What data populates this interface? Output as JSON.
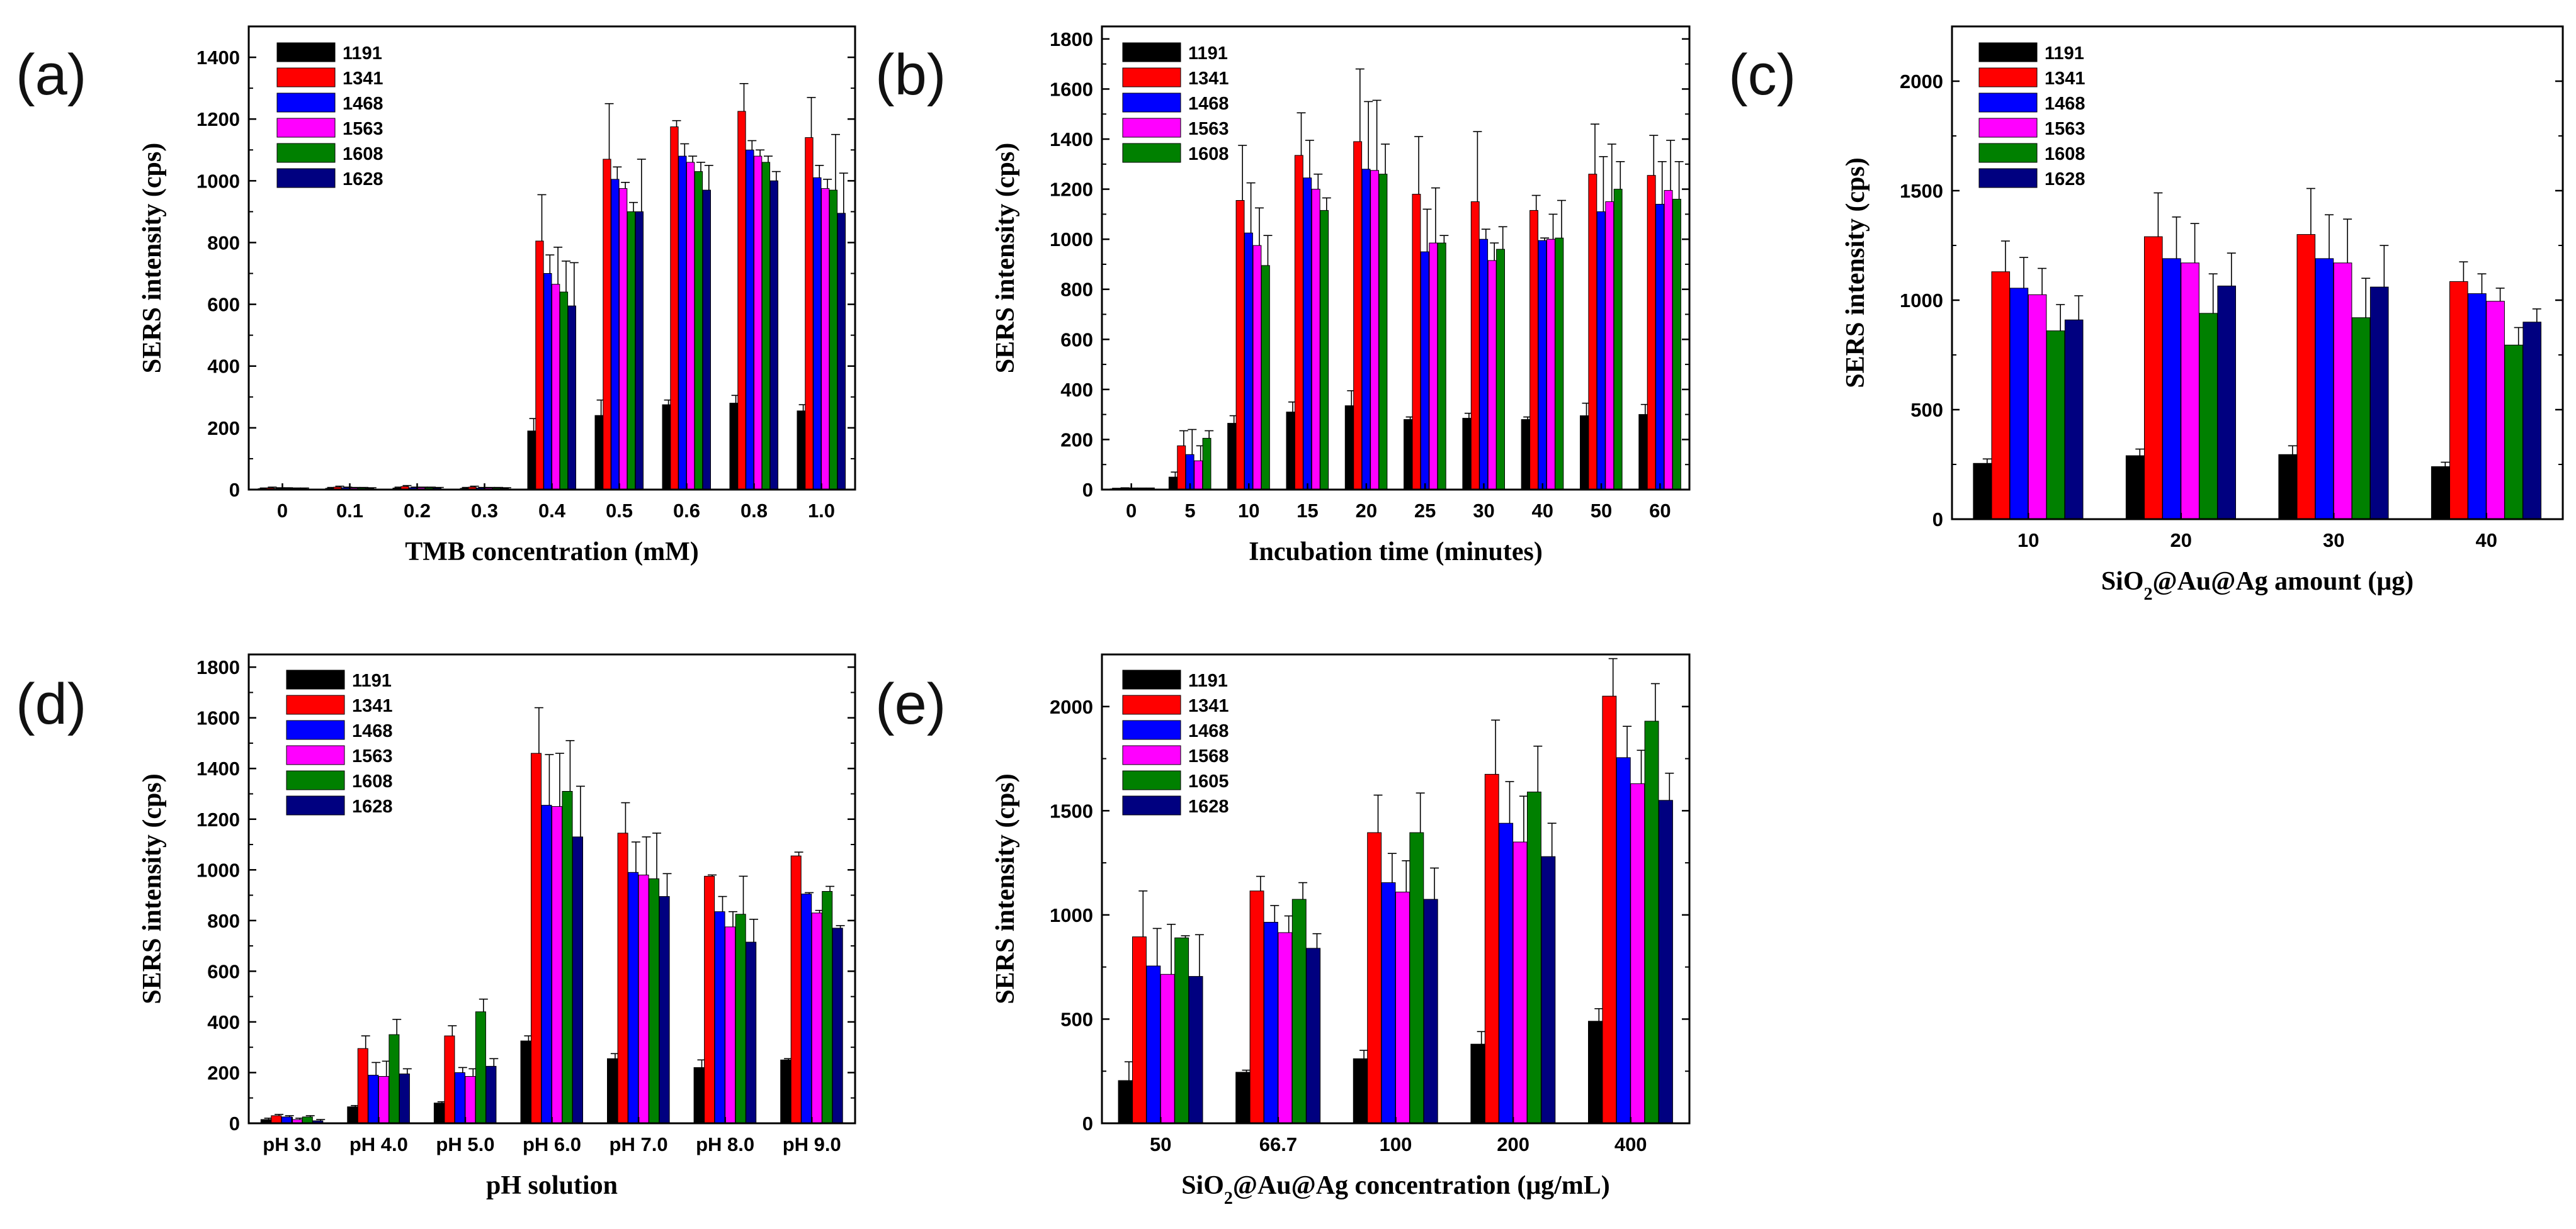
{
  "colors": {
    "1191": "#000000",
    "1341": "#ff0000",
    "1468": "#0000ff",
    "1563": "#ff00ff",
    "1568": "#ff00ff",
    "1605": "#008000",
    "1608": "#008000",
    "1628": "#000080"
  },
  "chart_data": [
    {
      "id": "a",
      "type": "bar",
      "panel_label": "(a)",
      "xlabel": "TMB concentration (mM)",
      "ylabel": "SERS intensity (cps)",
      "ylim": [
        0,
        1500
      ],
      "yticks": [
        0,
        200,
        400,
        600,
        800,
        1000,
        1200,
        1400
      ],
      "legend": "top-left",
      "categories": [
        "0",
        "0.1",
        "0.2",
        "0.3",
        "0.4",
        "0.5",
        "0.6",
        "0.8",
        "1.0"
      ],
      "series": [
        {
          "name": "1191",
          "values": [
            3,
            4,
            5,
            4,
            190,
            240,
            275,
            280,
            255
          ],
          "errors": [
            2,
            3,
            3,
            3,
            40,
            50,
            15,
            25,
            20
          ]
        },
        {
          "name": "1341",
          "values": [
            5,
            8,
            10,
            8,
            805,
            1070,
            1175,
            1225,
            1140
          ],
          "errors": [
            3,
            3,
            3,
            3,
            150,
            180,
            20,
            90,
            130
          ]
        },
        {
          "name": "1468",
          "values": [
            4,
            6,
            6,
            5,
            700,
            1005,
            1080,
            1100,
            1010
          ],
          "errors": [
            2,
            2,
            2,
            2,
            60,
            40,
            40,
            30,
            40
          ]
        },
        {
          "name": "1563",
          "values": [
            4,
            5,
            6,
            5,
            665,
            975,
            1060,
            1080,
            975
          ],
          "errors": [
            2,
            2,
            2,
            2,
            120,
            20,
            20,
            20,
            30
          ]
        },
        {
          "name": "1608",
          "values": [
            3,
            5,
            6,
            5,
            640,
            900,
            1030,
            1060,
            970
          ],
          "errors": [
            2,
            2,
            2,
            2,
            100,
            30,
            30,
            20,
            180
          ]
        },
        {
          "name": "1628",
          "values": [
            3,
            4,
            5,
            4,
            595,
            900,
            970,
            1000,
            895
          ],
          "errors": [
            2,
            2,
            2,
            2,
            140,
            170,
            80,
            30,
            130
          ]
        }
      ]
    },
    {
      "id": "b",
      "type": "bar",
      "panel_label": "(b)",
      "xlabel": "Incubation time (minutes)",
      "ylabel": "SERS intensity (cps)",
      "ylim": [
        0,
        1850
      ],
      "yticks": [
        0,
        200,
        400,
        600,
        800,
        1000,
        1200,
        1400,
        1600,
        1800
      ],
      "legend": "top-left",
      "categories": [
        "0",
        "5",
        "10",
        "15",
        "20",
        "25",
        "30",
        "40",
        "50",
        "60"
      ],
      "series": [
        {
          "name": "1191",
          "values": [
            3,
            50,
            265,
            310,
            335,
            280,
            285,
            280,
            295,
            300
          ],
          "errors": [
            2,
            20,
            30,
            40,
            60,
            10,
            20,
            10,
            50,
            40
          ]
        },
        {
          "name": "1341",
          "values": [
            5,
            175,
            1155,
            1335,
            1390,
            1180,
            1150,
            1115,
            1260,
            1255
          ],
          "errors": [
            2,
            60,
            220,
            170,
            290,
            230,
            280,
            60,
            200,
            160
          ]
        },
        {
          "name": "1468",
          "values": [
            4,
            140,
            1025,
            1245,
            1280,
            950,
            1000,
            995,
            1110,
            1140
          ],
          "errors": [
            2,
            100,
            200,
            150,
            270,
            170,
            40,
            10,
            220,
            170
          ]
        },
        {
          "name": "1563",
          "values": [
            4,
            115,
            975,
            1200,
            1275,
            985,
            915,
            1000,
            1150,
            1195
          ],
          "errors": [
            2,
            60,
            150,
            60,
            280,
            220,
            70,
            100,
            230,
            200
          ]
        },
        {
          "name": "1608",
          "values": [
            4,
            205,
            895,
            1115,
            1260,
            985,
            960,
            1005,
            1200,
            1160
          ],
          "errors": [
            2,
            30,
            120,
            50,
            120,
            30,
            90,
            150,
            110,
            150
          ]
        }
      ]
    },
    {
      "id": "c",
      "type": "bar",
      "panel_label": "(c)",
      "xlabel_parts": [
        "SiO",
        "2",
        "@Au@Ag amount (μg)"
      ],
      "ylabel": "SERS intensity (cps)",
      "ylim": [
        0,
        2250
      ],
      "yticks": [
        0,
        500,
        1000,
        1500,
        2000
      ],
      "legend": "top-left",
      "categories": [
        "10",
        "20",
        "30",
        "40"
      ],
      "series": [
        {
          "name": "1191",
          "values": [
            255,
            290,
            295,
            240
          ],
          "errors": [
            20,
            30,
            40,
            20
          ]
        },
        {
          "name": "1341",
          "values": [
            1130,
            1290,
            1300,
            1085
          ],
          "errors": [
            140,
            200,
            210,
            90
          ]
        },
        {
          "name": "1468",
          "values": [
            1055,
            1190,
            1190,
            1030
          ],
          "errors": [
            140,
            190,
            200,
            90
          ]
        },
        {
          "name": "1563",
          "values": [
            1025,
            1170,
            1170,
            995
          ],
          "errors": [
            120,
            180,
            200,
            60
          ]
        },
        {
          "name": "1608",
          "values": [
            860,
            940,
            920,
            795
          ],
          "errors": [
            120,
            180,
            180,
            80
          ]
        },
        {
          "name": "1628",
          "values": [
            910,
            1065,
            1060,
            900
          ],
          "errors": [
            110,
            150,
            190,
            60
          ]
        }
      ]
    },
    {
      "id": "d",
      "type": "bar",
      "panel_label": "(d)",
      "xlabel": "pH solution",
      "ylabel": "SERS intensity (cps)",
      "ylim": [
        0,
        1850
      ],
      "yticks": [
        0,
        200,
        400,
        600,
        800,
        1000,
        1200,
        1400,
        1600,
        1800
      ],
      "legend": "top-left",
      "categories": [
        "pH 3.0",
        "pH 4.0",
        "pH 5.0",
        "pH 6.0",
        "pH 7.0",
        "pH 8.0",
        "pH 9.0"
      ],
      "series": [
        {
          "name": "1191",
          "values": [
            15,
            65,
            80,
            325,
            255,
            220,
            250
          ],
          "errors": [
            5,
            5,
            5,
            20,
            20,
            30,
            5
          ]
        },
        {
          "name": "1341",
          "values": [
            30,
            295,
            345,
            1460,
            1145,
            975,
            1055
          ],
          "errors": [
            5,
            50,
            40,
            180,
            120,
            5,
            15
          ]
        },
        {
          "name": "1468",
          "values": [
            25,
            190,
            200,
            1255,
            990,
            835,
            905
          ],
          "errors": [
            5,
            50,
            20,
            200,
            120,
            60,
            5
          ]
        },
        {
          "name": "1563",
          "values": [
            15,
            185,
            185,
            1250,
            980,
            775,
            830
          ],
          "errors": [
            5,
            60,
            30,
            210,
            150,
            60,
            10
          ]
        },
        {
          "name": "1608",
          "values": [
            25,
            350,
            440,
            1310,
            965,
            825,
            915
          ],
          "errors": [
            5,
            60,
            50,
            200,
            180,
            150,
            20
          ]
        },
        {
          "name": "1628",
          "values": [
            10,
            195,
            225,
            1130,
            895,
            715,
            770
          ],
          "errors": [
            5,
            20,
            30,
            200,
            90,
            90,
            10
          ]
        }
      ]
    },
    {
      "id": "e",
      "type": "bar",
      "panel_label": "(e)",
      "xlabel_parts": [
        "SiO",
        "2",
        "@Au@Ag concentration (μg/mL)"
      ],
      "ylabel": "SERS intensity (cps)",
      "ylim": [
        0,
        2250
      ],
      "yticks": [
        0,
        500,
        1000,
        1500,
        2000
      ],
      "legend": "top-left",
      "categories": [
        "50",
        "66.7",
        "100",
        "200",
        "400"
      ],
      "series": [
        {
          "name": "1191",
          "values": [
            205,
            245,
            310,
            380,
            490
          ],
          "errors": [
            90,
            10,
            40,
            60,
            60
          ]
        },
        {
          "name": "1341",
          "values": [
            895,
            1115,
            1395,
            1675,
            2050
          ],
          "errors": [
            220,
            70,
            180,
            260,
            180
          ]
        },
        {
          "name": "1468",
          "values": [
            755,
            965,
            1155,
            1440,
            1755
          ],
          "errors": [
            180,
            80,
            140,
            200,
            150
          ]
        },
        {
          "name": "1568",
          "values": [
            715,
            915,
            1110,
            1350,
            1630
          ],
          "errors": [
            240,
            80,
            150,
            220,
            160
          ]
        },
        {
          "name": "1605",
          "values": [
            890,
            1075,
            1395,
            1590,
            1930
          ],
          "errors": [
            10,
            80,
            190,
            220,
            180
          ]
        },
        {
          "name": "1628",
          "values": [
            705,
            840,
            1075,
            1280,
            1550
          ],
          "errors": [
            200,
            70,
            150,
            160,
            130
          ]
        }
      ]
    }
  ]
}
